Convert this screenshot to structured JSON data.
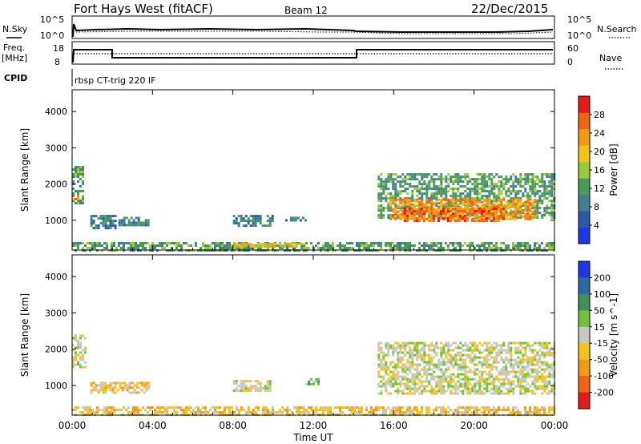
{
  "header": {
    "station": "Fort Hays West (fitACF)",
    "beam": "Beam 12",
    "date": "22/Dec/2015"
  },
  "top_panels": {
    "nsky_label": "N.Sky",
    "nsky_ticks": [
      "10^5",
      "10^0"
    ],
    "nsearch_label": "N.Search",
    "freq_label_1": "Freq.",
    "freq_label_2": "[MHz]",
    "freq_ticks": [
      "18",
      "8"
    ],
    "nave_ticks": [
      "60",
      "0"
    ],
    "nave_label": "Nave",
    "cpid_label": "CPID",
    "cpid_text": "rbsp CT-trig 220 IF"
  },
  "chart_data": [
    {
      "type": "heatmap",
      "name": "power",
      "ylabel": "Slant Range [km]",
      "ylim": [
        180,
        4600
      ],
      "yticks": [
        1000,
        2000,
        3000,
        4000
      ],
      "xlim": [
        0,
        24
      ],
      "colorbar": {
        "label": "Power [dB]",
        "range": [
          0,
          32
        ],
        "ticks": [
          4,
          8,
          12,
          16,
          20,
          24,
          28
        ],
        "colors": [
          "#1e37e6",
          "#2a5aa8",
          "#3f7f8f",
          "#4a9a5a",
          "#9acb3a",
          "#f4c21a",
          "#f59a14",
          "#f0650f",
          "#e61a1a"
        ]
      },
      "regions": [
        {
          "t": [
            0.0,
            0.5
          ],
          "r": [
            1500,
            2500
          ],
          "level": 12
        },
        {
          "t": [
            0.0,
            0.3
          ],
          "r": [
            1550,
            1750
          ],
          "level": 22
        },
        {
          "t": [
            0.9,
            2.2
          ],
          "r": [
            800,
            1150
          ],
          "level": 8
        },
        {
          "t": [
            2.3,
            3.8
          ],
          "r": [
            900,
            1100
          ],
          "level": 8
        },
        {
          "t": [
            8.0,
            10.0
          ],
          "r": [
            850,
            1150
          ],
          "level": 8
        },
        {
          "t": [
            10.6,
            11.6
          ],
          "r": [
            1000,
            1100
          ],
          "level": 8
        },
        {
          "t": [
            0.0,
            24.0
          ],
          "r": [
            200,
            400
          ],
          "level": 10
        },
        {
          "t": [
            8.0,
            11.5
          ],
          "r": [
            280,
            380
          ],
          "level": 20
        },
        {
          "t": [
            15.2,
            24.0
          ],
          "r": [
            1100,
            2300
          ],
          "level": 12
        },
        {
          "t": [
            15.8,
            23.0
          ],
          "r": [
            1050,
            1600
          ],
          "level": 22
        },
        {
          "t": [
            16.5,
            21.5
          ],
          "r": [
            1000,
            1350
          ],
          "level": 28
        }
      ]
    },
    {
      "type": "heatmap",
      "name": "velocity",
      "ylabel": "Slant Range [km]",
      "xlabel": "Time UT",
      "ylim": [
        180,
        4600
      ],
      "yticks": [
        1000,
        2000,
        3000,
        4000
      ],
      "xlim": [
        0,
        24
      ],
      "xticks": [
        "00:00",
        "04:00",
        "08:00",
        "12:00",
        "16:00",
        "20:00",
        "00:00"
      ],
      "colorbar": {
        "label": "Velocity [m s^-1]",
        "tick_labels": [
          "200",
          "100",
          "50",
          "15",
          "-15",
          "-50",
          "-100",
          "-200"
        ],
        "colors": [
          "#1e37e6",
          "#2a6aa8",
          "#3f8f5f",
          "#6fc23a",
          "#c8c8c0",
          "#f4c21a",
          "#f59a14",
          "#f0650f",
          "#e61a1a"
        ]
      },
      "regions": [
        {
          "t": [
            0.0,
            0.6
          ],
          "r": [
            1500,
            2400
          ],
          "level": 15
        },
        {
          "t": [
            0.9,
            3.8
          ],
          "r": [
            800,
            1100
          ],
          "level": -50
        },
        {
          "t": [
            8.0,
            9.8
          ],
          "r": [
            850,
            1150
          ],
          "level": 15
        },
        {
          "t": [
            11.6,
            12.2
          ],
          "r": [
            1050,
            1200
          ],
          "level": 50
        },
        {
          "t": [
            0.0,
            24.0
          ],
          "r": [
            200,
            420
          ],
          "level": -50
        },
        {
          "t": [
            15.2,
            24.0
          ],
          "r": [
            800,
            2200
          ],
          "level": 15
        }
      ]
    }
  ]
}
